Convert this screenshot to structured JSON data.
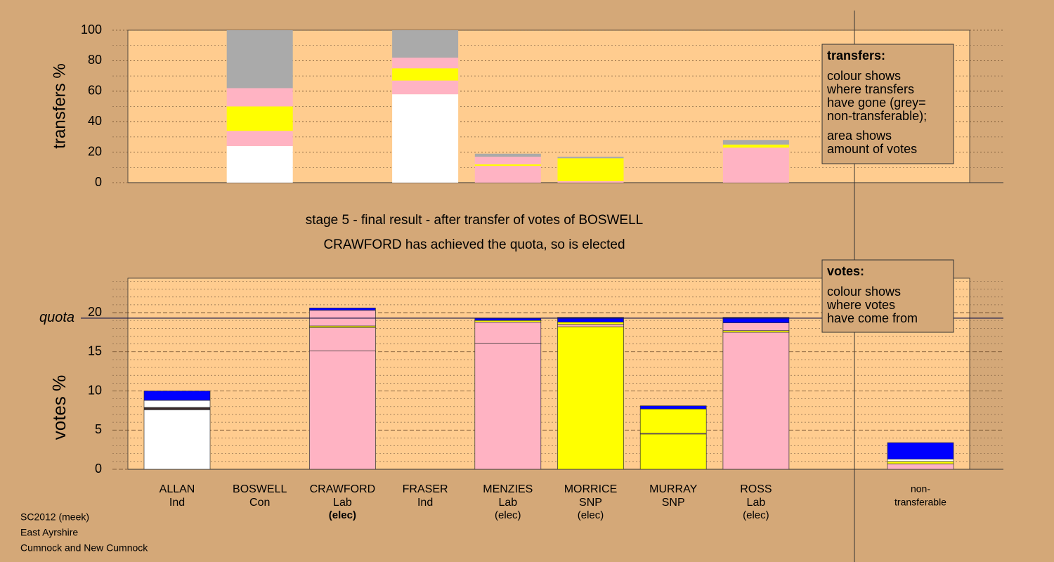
{
  "chart_data": [
    {
      "type": "stacked_bar",
      "ylabel": "transfers %",
      "ylim": [
        0,
        100
      ],
      "yticks": [
        0,
        20,
        40,
        60,
        80,
        100
      ],
      "yminor": [
        10,
        30,
        50,
        70,
        90
      ],
      "grid": true,
      "grid_style": "dotted",
      "legend_title": "transfers:",
      "legend_lines": [
        "colour shows",
        "where transfers",
        "have gone (grey=",
        "non-transferable);",
        "area shows",
        "amount of votes"
      ],
      "stacks": [
        [],
        [
          {
            "color": "#ffffff",
            "value": 24
          },
          {
            "color": "#ffb3c3",
            "value": 10
          },
          {
            "color": "#ffff00",
            "value": 16
          },
          {
            "color": "#ffb3c3",
            "value": 12
          },
          {
            "color": "#aaaaaa",
            "value": 38
          }
        ],
        [],
        [
          {
            "color": "#ffffff",
            "value": 58
          },
          {
            "color": "#ffb3c3",
            "value": 9
          },
          {
            "color": "#ffff00",
            "value": 8
          },
          {
            "color": "#ffb3c3",
            "value": 7
          },
          {
            "color": "#aaaaaa",
            "value": 18
          }
        ],
        [
          {
            "color": "#ffb3c3",
            "value": 11
          },
          {
            "color": "#ffff00",
            "value": 1
          },
          {
            "color": "#ffb3c3",
            "value": 5
          },
          {
            "color": "#aaaaaa",
            "value": 2
          }
        ],
        [
          {
            "color": "#ffb3c3",
            "value": 1
          },
          {
            "color": "#ffff00",
            "value": 15
          },
          {
            "color": "#aaaaaa",
            "value": 1
          }
        ],
        [],
        [
          {
            "color": "#ffb3c3",
            "value": 23
          },
          {
            "color": "#ffff00",
            "value": 2
          },
          {
            "color": "#aaaaaa",
            "value": 3
          }
        ],
        []
      ]
    },
    {
      "type": "stacked_bar",
      "ylabel": "votes %",
      "ylim": [
        0,
        24.4
      ],
      "yticks": [
        0,
        5,
        10,
        15,
        20
      ],
      "yminor": [
        1,
        2,
        3,
        4,
        6,
        7,
        8,
        9,
        11,
        12,
        13,
        14,
        16,
        17,
        18,
        19,
        21,
        22,
        23,
        24
      ],
      "grid": true,
      "grid_style": "dashed",
      "quota": 19.3,
      "quota_label": "quota",
      "legend_title": "votes:",
      "legend_lines": [
        "colour shows",
        "where votes",
        "have come from"
      ],
      "categories": [
        "ALLAN",
        "BOSWELL",
        "CRAWFORD",
        "FRASER",
        "MENZIES",
        "MORRICE",
        "MURRAY",
        "ROSS",
        "non-"
      ],
      "parties": [
        "Ind",
        "Con",
        "Lab",
        "Ind",
        "Lab",
        "SNP",
        "SNP",
        "Lab",
        "transferable"
      ],
      "status": [
        null,
        null,
        "(elec)",
        null,
        "(elec)",
        "(elec)",
        null,
        "(elec)",
        null
      ],
      "status_bold": [
        false,
        false,
        true,
        false,
        false,
        false,
        false,
        false,
        false
      ],
      "stacks": [
        [
          {
            "color": "#ffffff",
            "value": 7.6
          },
          {
            "color": "#3a2a2a",
            "value": 0.3
          },
          {
            "color": "#ffffff",
            "value": 0.9
          },
          {
            "color": "#0000ff",
            "value": 1.2
          }
        ],
        [],
        [
          {
            "color": "#ffb3c3",
            "value": 15.1
          },
          {
            "color": "#ffb3c3",
            "value": 3.0
          },
          {
            "color": "#ffff00",
            "value": 0.2
          },
          {
            "color": "#ffb3c3",
            "value": 2.0
          },
          {
            "color": "#0000ff",
            "value": 0.3
          }
        ],
        [],
        [
          {
            "color": "#ffb3c3",
            "value": 16.1
          },
          {
            "color": "#ffb3c3",
            "value": 2.7
          },
          {
            "color": "#ffff00",
            "value": 0.2
          },
          {
            "color": "#0000ff",
            "value": 0.3
          }
        ],
        [
          {
            "color": "#ffff00",
            "value": 18.2
          },
          {
            "color": "#ffb3c3",
            "value": 0.3
          },
          {
            "color": "#ffff00",
            "value": 0.3
          },
          {
            "color": "#0000ff",
            "value": 0.6
          }
        ],
        [
          {
            "color": "#ffff00",
            "value": 4.5
          },
          {
            "color": "#ffb3c3",
            "value": 0.1
          },
          {
            "color": "#ffff00",
            "value": 3.1
          },
          {
            "color": "#0000ff",
            "value": 0.4
          }
        ],
        [
          {
            "color": "#ffb3c3",
            "value": 17.5
          },
          {
            "color": "#ffff00",
            "value": 0.2
          },
          {
            "color": "#ffb3c3",
            "value": 1.0
          },
          {
            "color": "#0000ff",
            "value": 0.7
          }
        ],
        [
          {
            "color": "#ffb3c3",
            "value": 0.7
          },
          {
            "color": "#ffff00",
            "value": 0.3
          },
          {
            "color": "#ffffff",
            "value": 0.3
          },
          {
            "color": "#0000ff",
            "value": 2.1
          }
        ]
      ]
    }
  ],
  "stage_lines": [
    "stage 5 - final result - after transfer of votes of BOSWELL",
    "CRAWFORD has achieved the quota, so is elected"
  ],
  "footer": [
    "SC2012 (meek)",
    "East Ayrshire",
    "Cumnock and New Cumnock"
  ]
}
